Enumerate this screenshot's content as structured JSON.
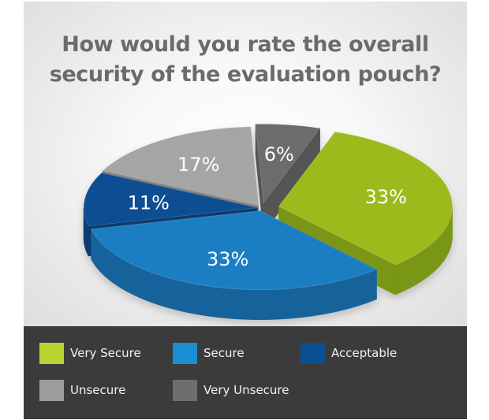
{
  "chart_data": {
    "type": "pie",
    "title": "How would you rate the overall security of the evaluation pouch?",
    "title_lines": [
      "How would you rate the overall",
      "security of the evaluation pouch?"
    ],
    "series": [
      {
        "slices": [
          {
            "label": "Very Secure",
            "value": 33,
            "data_label": "33%",
            "color": "#9bbb1a",
            "color_dark": "#7a9612"
          },
          {
            "label": "Secure",
            "value": 33,
            "data_label": "33%",
            "color": "#1e7ec2",
            "color_dark": "#17639b"
          },
          {
            "label": "Acceptable",
            "value": 11,
            "data_label": "11%",
            "color": "#0c4e92",
            "color_dark": "#093a6e"
          },
          {
            "label": "Unsecure",
            "value": 17,
            "data_label": "17%",
            "color": "#a5a5a5",
            "color_dark": "#838383"
          },
          {
            "label": "Very Unsecure",
            "value": 6,
            "data_label": "6%",
            "color": "#6c6c6c",
            "color_dark": "#545454"
          }
        ]
      }
    ],
    "legend": {
      "placement": "bottom",
      "items": [
        {
          "label": "Very Secure",
          "color": "#b9d431"
        },
        {
          "label": "Secure",
          "color": "#1a8ed2"
        },
        {
          "label": "Acceptable",
          "color": "#0c4e92"
        },
        {
          "label": "Unsecure",
          "color": "#9d9d9d"
        },
        {
          "label": "Very Unsecure",
          "color": "#6e6e6e"
        }
      ]
    },
    "style": "3d-exploded-pie"
  }
}
